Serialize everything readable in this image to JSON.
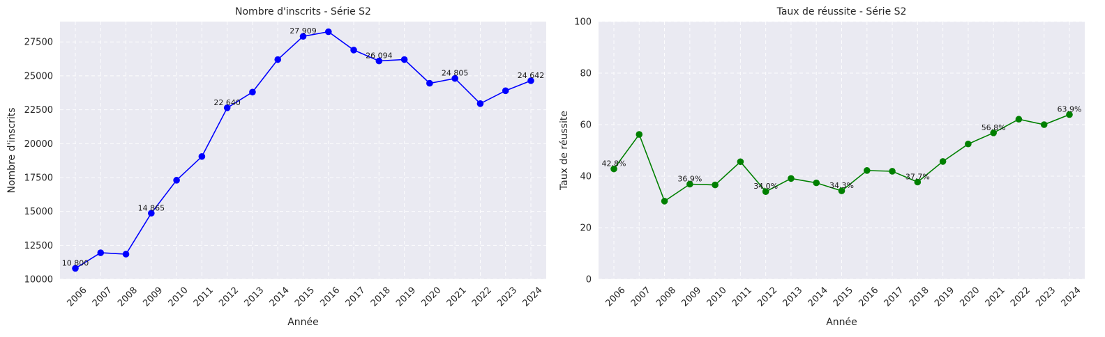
{
  "chart_data": [
    {
      "type": "line",
      "title": "Nombre d'inscrits - Série S2",
      "xlabel": "Année",
      "ylabel": "Nombre d'inscrits",
      "ylim": [
        10000,
        29000
      ],
      "yticks": [
        "10000",
        "12500",
        "15000",
        "17500",
        "20000",
        "22500",
        "25000",
        "27500"
      ],
      "ytick_values": [
        10000,
        12500,
        15000,
        17500,
        20000,
        22500,
        25000,
        27500
      ],
      "grid": true,
      "color": "#0000ff",
      "categories": [
        "2006",
        "2007",
        "2008",
        "2009",
        "2010",
        "2011",
        "2012",
        "2013",
        "2014",
        "2015",
        "2016",
        "2017",
        "2018",
        "2019",
        "2020",
        "2021",
        "2022",
        "2023",
        "2024"
      ],
      "series": [
        {
          "values": [
            10800,
            11950,
            11850,
            14865,
            17300,
            19050,
            22640,
            23800,
            26200,
            27909,
            28250,
            26900,
            26094,
            26200,
            24450,
            24805,
            22950,
            23900,
            24642
          ]
        }
      ],
      "annotations": [
        {
          "index": 0,
          "text": "10 800"
        },
        {
          "index": 3,
          "text": "14 865"
        },
        {
          "index": 6,
          "text": "22 640"
        },
        {
          "index": 9,
          "text": "27 909"
        },
        {
          "index": 12,
          "text": "26 094"
        },
        {
          "index": 15,
          "text": "24 805"
        },
        {
          "index": 18,
          "text": "24 642"
        }
      ]
    },
    {
      "type": "line",
      "title": "Taux de réussite - Série S2",
      "xlabel": "Année",
      "ylabel": "Taux de réussite",
      "ylim": [
        0,
        100
      ],
      "yticks": [
        "0",
        "20",
        "40",
        "60",
        "80",
        "100"
      ],
      "ytick_values": [
        0,
        20,
        40,
        60,
        80,
        100
      ],
      "grid": true,
      "color": "#008000",
      "categories": [
        "2006",
        "2007",
        "2008",
        "2009",
        "2010",
        "2011",
        "2012",
        "2013",
        "2014",
        "2015",
        "2016",
        "2017",
        "2018",
        "2019",
        "2020",
        "2021",
        "2022",
        "2023",
        "2024"
      ],
      "series": [
        {
          "values": [
            42.8,
            56.2,
            30.3,
            36.9,
            36.6,
            45.6,
            34.0,
            39.1,
            37.4,
            34.3,
            42.2,
            41.9,
            37.7,
            45.7,
            52.5,
            56.8,
            62.1,
            60.0,
            63.9
          ]
        }
      ],
      "annotations": [
        {
          "index": 0,
          "text": "42.8%"
        },
        {
          "index": 3,
          "text": "36.9%"
        },
        {
          "index": 6,
          "text": "34.0%"
        },
        {
          "index": 9,
          "text": "34.3%"
        },
        {
          "index": 12,
          "text": "37.7%"
        },
        {
          "index": 15,
          "text": "56.8%"
        },
        {
          "index": 18,
          "text": "63.9%"
        }
      ]
    }
  ]
}
